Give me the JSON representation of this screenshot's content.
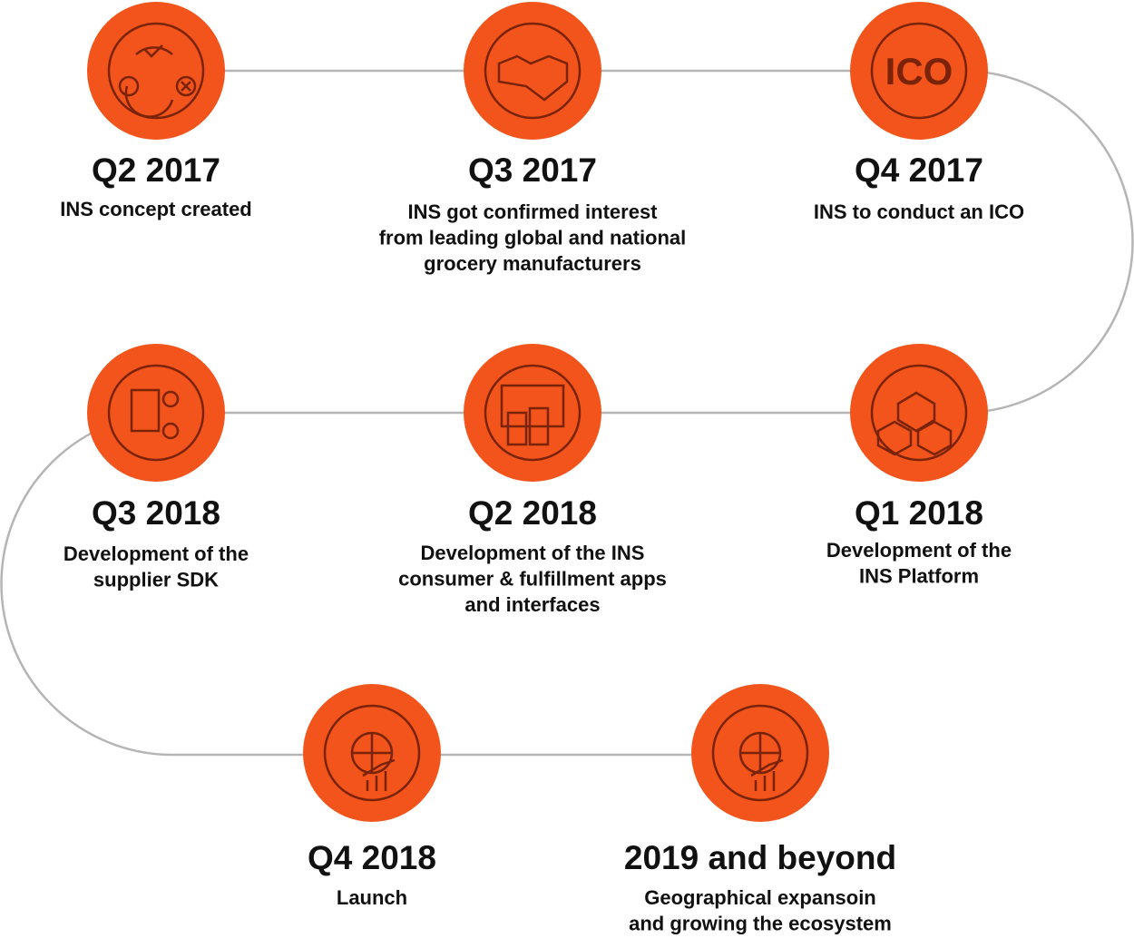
{
  "milestones": [
    {
      "title": "Q2 2017",
      "description": [
        "INS concept created"
      ]
    },
    {
      "title": "Q3 2017",
      "description": [
        "INS got confirmed interest",
        "from leading global and national",
        "grocery manufacturers"
      ]
    },
    {
      "title": "Q4 2017",
      "description": [
        "INS to conduct an ICO"
      ],
      "icon_text": "ICO"
    },
    {
      "title": "Q1 2018",
      "description": [
        "Development of the",
        "INS Platform"
      ]
    },
    {
      "title": "Q2 2018",
      "description": [
        "Development of the INS",
        "consumer & fulfillment apps",
        "and interfaces"
      ]
    },
    {
      "title": "Q3 2018",
      "description": [
        "Development of the",
        "supplier SDK"
      ]
    },
    {
      "title": "Q4 2018",
      "description": [
        "Launch"
      ]
    },
    {
      "title": "2019 and beyond",
      "description": [
        "Geographical expansoin",
        "and growing the ecosystem"
      ]
    }
  ]
}
